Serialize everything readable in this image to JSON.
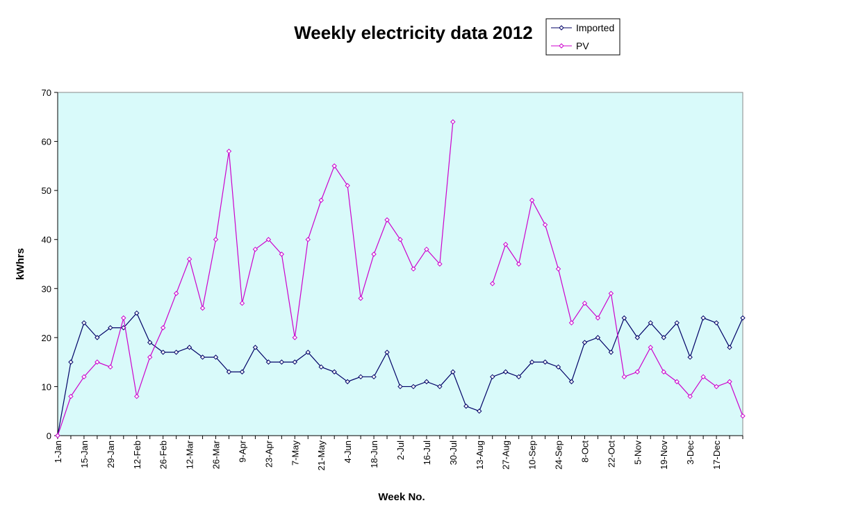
{
  "chart_data": {
    "type": "line",
    "title": "Weekly electricity data 2012",
    "xlabel": "Week No.",
    "ylabel": "kWhrs",
    "ylim": [
      0,
      70
    ],
    "yticks": [
      0,
      10,
      20,
      30,
      40,
      50,
      60,
      70
    ],
    "grid": false,
    "legend_position": "top-right",
    "plot_background": "#d9fafa",
    "categories": [
      "1-Jan",
      "8-Jan",
      "15-Jan",
      "22-Jan",
      "29-Jan",
      "5-Feb",
      "12-Feb",
      "19-Feb",
      "26-Feb",
      "4-Mar",
      "12-Mar",
      "19-Mar",
      "26-Mar",
      "2-Apr",
      "9-Apr",
      "16-Apr",
      "23-Apr",
      "30-Apr",
      "7-May",
      "14-May",
      "21-May",
      "28-May",
      "4-Jun",
      "11-Jun",
      "18-Jun",
      "25-Jun",
      "2-Jul",
      "9-Jul",
      "16-Jul",
      "23-Jul",
      "30-Jul",
      "6-Aug",
      "13-Aug",
      "20-Aug",
      "27-Aug",
      "3-Sep",
      "10-Sep",
      "17-Sep",
      "24-Sep",
      "1-Oct",
      "8-Oct",
      "15-Oct",
      "22-Oct",
      "29-Oct",
      "5-Nov",
      "12-Nov",
      "19-Nov",
      "26-Nov",
      "3-Dec",
      "10-Dec",
      "17-Dec",
      "24-Dec",
      "31-Dec"
    ],
    "tick_labels": [
      "1-Jan",
      "15-Jan",
      "29-Jan",
      "12-Feb",
      "26-Feb",
      "12-Mar",
      "26-Mar",
      "9-Apr",
      "23-Apr",
      "7-May",
      "21-May",
      "4-Jun",
      "18-Jun",
      "2-Jul",
      "16-Jul",
      "30-Jul",
      "13-Aug",
      "27-Aug",
      "10-Sep",
      "24-Sep",
      "8-Oct",
      "22-Oct",
      "5-Nov",
      "19-Nov",
      "3-Dec",
      "17-Dec"
    ],
    "series": [
      {
        "name": "Imported",
        "color": "#000066",
        "values": [
          0,
          15,
          23,
          20,
          22,
          22,
          25,
          19,
          17,
          17,
          18,
          16,
          16,
          13,
          13,
          18,
          15,
          15,
          15,
          17,
          14,
          13,
          11,
          12,
          12,
          17,
          10,
          10,
          11,
          10,
          13,
          6,
          5,
          12,
          13,
          12,
          15,
          15,
          14,
          11,
          19,
          20,
          17,
          24,
          20,
          23,
          20,
          23,
          16,
          24,
          23,
          18,
          24
        ]
      },
      {
        "name": "PV",
        "color": "#cc00cc",
        "values": [
          0,
          8,
          12,
          15,
          14,
          24,
          8,
          16,
          22,
          29,
          36,
          26,
          40,
          58,
          27,
          38,
          40,
          37,
          20,
          40,
          48,
          55,
          51,
          28,
          37,
          44,
          40,
          34,
          38,
          35,
          64,
          null,
          null,
          31,
          39,
          35,
          48,
          43,
          34,
          23,
          27,
          24,
          29,
          12,
          13,
          18,
          13,
          11,
          8,
          12,
          10,
          11,
          4
        ]
      }
    ]
  }
}
